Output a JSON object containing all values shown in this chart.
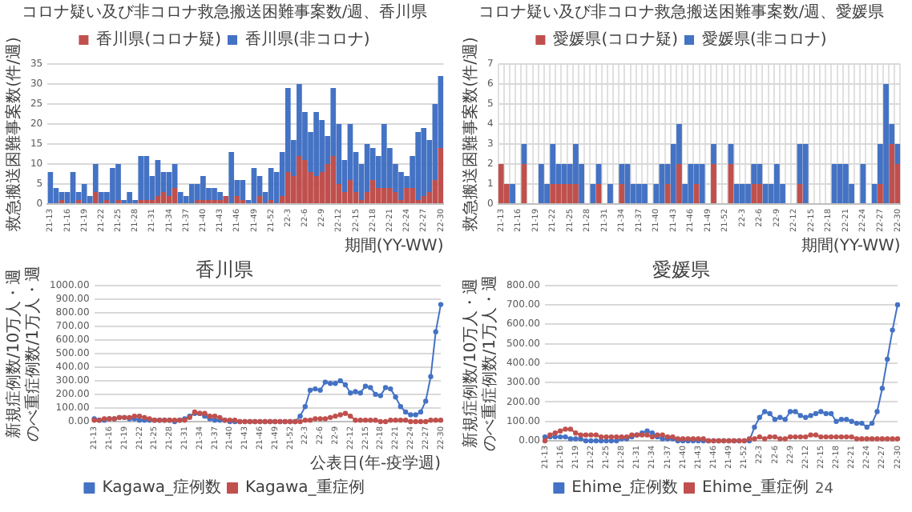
{
  "chart_data": [
    {
      "type": "bar",
      "title": "コロナ疑い及び非コロナ救急搬送困難事案数/週、香川県",
      "xlabel": "期間(YY-WW)",
      "ylabel": "救急搬送困難事案数(件/週)",
      "stacked": true,
      "grid": "y",
      "legend": "top left",
      "ylim": [
        0,
        35
      ],
      "yticks": [
        0,
        5,
        10,
        15,
        20,
        25,
        30,
        35
      ],
      "categories": [
        "21-13",
        null,
        null,
        "21-16",
        null,
        null,
        "21-19",
        null,
        null,
        "21-22",
        null,
        null,
        "21-25",
        null,
        null,
        "21-28",
        null,
        null,
        "21-31",
        null,
        null,
        "21-34",
        null,
        null,
        "21-37",
        null,
        null,
        "21-40",
        null,
        null,
        "21-43",
        null,
        null,
        "21-46",
        null,
        null,
        "21-49",
        null,
        null,
        "21-52",
        null,
        null,
        "22-3",
        null,
        null,
        "22-6",
        null,
        null,
        "22-9",
        null,
        null,
        "22-12",
        null,
        null,
        "22-15",
        null,
        null,
        "22-18",
        null,
        null,
        "22-21",
        null,
        null,
        "22-24",
        null,
        null,
        "22-27",
        null,
        null,
        "22-30"
      ],
      "series": [
        {
          "name": "香川県(コロナ疑)",
          "color": "#c0504d",
          "values": [
            0,
            0,
            1,
            0,
            0,
            1,
            0,
            0,
            3,
            0,
            1,
            0,
            1,
            0,
            0,
            0,
            1,
            1,
            1,
            2,
            3,
            2,
            4,
            0,
            0,
            0,
            1,
            1,
            1,
            1,
            1,
            2,
            0,
            2,
            1,
            0,
            0,
            2,
            0,
            1,
            0,
            2,
            8,
            7,
            12,
            11,
            8,
            7,
            8,
            10,
            12,
            5,
            3,
            6,
            3,
            1,
            3,
            6,
            4,
            4,
            4,
            3,
            1,
            4,
            4,
            1,
            2,
            3,
            6,
            14
          ]
        },
        {
          "name": "香川県(非コロナ)",
          "color": "#4472c4",
          "values": [
            8,
            4,
            2,
            3,
            8,
            2,
            5,
            2,
            7,
            3,
            2,
            9,
            9,
            1,
            3,
            1,
            11,
            11,
            6,
            9,
            5,
            6,
            6,
            3,
            2,
            5,
            4,
            6,
            3,
            3,
            2,
            0,
            13,
            4,
            5,
            1,
            9,
            5,
            3,
            8,
            8,
            11,
            21,
            9,
            18,
            12,
            10,
            16,
            13,
            7,
            17,
            15,
            8,
            14,
            10,
            9,
            12,
            8,
            8,
            16,
            10,
            7,
            7,
            3,
            8,
            17,
            17,
            13,
            19,
            18
          ]
        }
      ]
    },
    {
      "type": "bar",
      "title": "コロナ疑い及び非コロナ救急搬送困難事案数/週、愛媛県",
      "xlabel": "期間(YY-WW)",
      "ylabel": "救急搬送困難事案数(件/週)",
      "stacked": true,
      "grid": true,
      "legend": "top left",
      "ylim": [
        0,
        7
      ],
      "yticks": [
        0,
        1,
        2,
        3,
        4,
        5,
        6,
        7
      ],
      "categories": [
        "21-13",
        null,
        null,
        "21-16",
        null,
        null,
        "21-19",
        null,
        null,
        "21-22",
        null,
        null,
        "21-25",
        null,
        null,
        "21-28",
        null,
        null,
        "21-31",
        null,
        null,
        "21-34",
        null,
        null,
        "21-37",
        null,
        null,
        "21-40",
        null,
        null,
        "21-43",
        null,
        null,
        "21-46",
        null,
        null,
        "21-49",
        null,
        null,
        "21-52",
        null,
        null,
        "22-3",
        null,
        null,
        "22-6",
        null,
        null,
        "22-9",
        null,
        null,
        "22-12",
        null,
        null,
        "22-15",
        null,
        null,
        "22-18",
        null,
        null,
        "22-21",
        null,
        null,
        "22-24",
        null,
        null,
        "22-27",
        null,
        null,
        "22-30"
      ],
      "series": [
        {
          "name": "愛媛県(コロナ疑)",
          "color": "#c0504d",
          "values": [
            2,
            1,
            0,
            0,
            2,
            0,
            0,
            0,
            0,
            1,
            1,
            1,
            1,
            1,
            0,
            0,
            0,
            1,
            0,
            0,
            0,
            1,
            0,
            0,
            0,
            0,
            0,
            0,
            0,
            1,
            0,
            2,
            0,
            0,
            1,
            0,
            0,
            2,
            0,
            0,
            2,
            0,
            0,
            0,
            1,
            1,
            0,
            0,
            0,
            0,
            0,
            0,
            1,
            0,
            0,
            0,
            0,
            0,
            0,
            0,
            0,
            0,
            0,
            0,
            0,
            0,
            1,
            0,
            3,
            2
          ]
        },
        {
          "name": "愛媛県(非コロナ)",
          "color": "#4472c4",
          "values": [
            0,
            0,
            1,
            0,
            1,
            0,
            0,
            2,
            1,
            2,
            1,
            1,
            1,
            2,
            2,
            0,
            1,
            1,
            0,
            1,
            0,
            1,
            2,
            1,
            1,
            1,
            0,
            1,
            2,
            1,
            3,
            2,
            1,
            2,
            1,
            2,
            0,
            1,
            0,
            0,
            1,
            1,
            1,
            1,
            1,
            1,
            1,
            1,
            2,
            1,
            0,
            0,
            2,
            3,
            0,
            0,
            0,
            0,
            2,
            2,
            2,
            1,
            0,
            2,
            0,
            1,
            2,
            6,
            1,
            1
          ]
        }
      ]
    },
    {
      "type": "line",
      "title": "香川県",
      "xlabel": "公表日(年-疫学週)",
      "ylabel": "新規症例数/10万人・週のべ重症例数/1万人・週",
      "grid": "y",
      "legend": "bottom",
      "marker": "circle",
      "ylim": [
        0,
        1000
      ],
      "yticks": [
        {
          "value": 0,
          "label": "0.00"
        },
        {
          "value": 100,
          "label": "100.00"
        },
        {
          "value": 200,
          "label": "200.00"
        },
        {
          "value": 300,
          "label": "300.00"
        },
        {
          "value": 400,
          "label": "400.00"
        },
        {
          "value": 500,
          "label": "500.00"
        },
        {
          "value": 600,
          "label": "600.00"
        },
        {
          "value": 700,
          "label": "700.00"
        },
        {
          "value": 800,
          "label": "800.00"
        },
        {
          "value": 900,
          "label": "900.00"
        },
        {
          "value": 1000,
          "label": "1000.00"
        }
      ],
      "categories": [
        "21-13",
        null,
        null,
        "21-16",
        null,
        null,
        "21-19",
        null,
        null,
        "21-22",
        null,
        null,
        "21-25",
        null,
        null,
        "21-28",
        null,
        null,
        "21-31",
        null,
        null,
        "21-34",
        null,
        null,
        "21-37",
        null,
        null,
        "21-40",
        null,
        null,
        "21-43",
        null,
        null,
        "21-46",
        null,
        null,
        "21-49",
        null,
        null,
        "21-52",
        null,
        null,
        "22-3",
        null,
        null,
        "22-6",
        null,
        null,
        "22-9",
        null,
        null,
        "22-12",
        null,
        null,
        "22-15",
        null,
        null,
        "22-18",
        null,
        null,
        "22-21",
        null,
        null,
        "22-24",
        null,
        null,
        "22-27",
        null,
        null,
        "22-30"
      ],
      "series": [
        {
          "name": "Kagawa_症例数",
          "color": "#4472c4",
          "values": [
            20,
            10,
            10,
            20,
            20,
            30,
            30,
            20,
            20,
            10,
            10,
            10,
            10,
            10,
            10,
            10,
            0,
            10,
            20,
            40,
            60,
            60,
            40,
            20,
            10,
            10,
            10,
            0,
            0,
            0,
            0,
            0,
            0,
            0,
            0,
            0,
            0,
            0,
            0,
            0,
            0,
            40,
            110,
            230,
            240,
            230,
            290,
            280,
            280,
            300,
            270,
            210,
            220,
            210,
            260,
            250,
            200,
            190,
            250,
            240,
            180,
            110,
            70,
            50,
            50,
            70,
            150,
            330,
            660,
            860
          ]
        },
        {
          "name": "Kagawa_重症例",
          "color": "#c0504d",
          "values": [
            10,
            10,
            20,
            20,
            20,
            30,
            30,
            30,
            40,
            40,
            30,
            20,
            10,
            10,
            10,
            10,
            10,
            10,
            10,
            30,
            70,
            60,
            60,
            40,
            40,
            30,
            10,
            10,
            10,
            0,
            0,
            0,
            0,
            0,
            0,
            0,
            0,
            0,
            0,
            0,
            0,
            0,
            10,
            10,
            20,
            20,
            20,
            30,
            40,
            50,
            60,
            40,
            10,
            10,
            10,
            10,
            10,
            0,
            0,
            10,
            10,
            10,
            10,
            0,
            0,
            0,
            0,
            10,
            10,
            10
          ]
        }
      ]
    },
    {
      "type": "line",
      "title": "愛媛県",
      "ylabel": "新規症例数/10万人・週のべ重症例数/1万人・週",
      "grid": "y",
      "legend": "bottom",
      "marker": "circle",
      "ylim": [
        0,
        800
      ],
      "annotations": [
        "24"
      ],
      "yticks": [
        {
          "value": 0,
          "label": "0.00"
        },
        {
          "value": 100,
          "label": "100.00"
        },
        {
          "value": 200,
          "label": "200.00"
        },
        {
          "value": 300,
          "label": "300.00"
        },
        {
          "value": 400,
          "label": "400.00"
        },
        {
          "value": 500,
          "label": "500.00"
        },
        {
          "value": 600,
          "label": "600.00"
        },
        {
          "value": 700,
          "label": "700.00"
        },
        {
          "value": 800,
          "label": "800.00"
        }
      ],
      "categories": [
        "21-13",
        null,
        null,
        "21-16",
        null,
        null,
        "21-19",
        null,
        null,
        "21-22",
        null,
        null,
        "21-25",
        null,
        null,
        "21-28",
        null,
        null,
        "21-31",
        null,
        null,
        "21-34",
        null,
        null,
        "21-37",
        null,
        null,
        "21-40",
        null,
        null,
        "21-43",
        null,
        null,
        "21-46",
        null,
        null,
        "21-49",
        null,
        null,
        "21-52",
        null,
        null,
        "22-3",
        null,
        null,
        "22-6",
        null,
        null,
        "22-9",
        null,
        null,
        "22-12",
        null,
        null,
        "22-15",
        null,
        null,
        "22-18",
        null,
        null,
        "22-21",
        null,
        null,
        "22-24",
        null,
        null,
        "22-27",
        null,
        null,
        "22-30"
      ],
      "series": [
        {
          "name": "Ehime_症例数",
          "color": "#4472c4",
          "values": [
            20,
            20,
            20,
            20,
            20,
            10,
            10,
            10,
            0,
            0,
            0,
            0,
            0,
            0,
            0,
            10,
            10,
            20,
            30,
            40,
            50,
            40,
            20,
            10,
            10,
            10,
            0,
            0,
            0,
            0,
            0,
            0,
            0,
            0,
            0,
            0,
            0,
            0,
            0,
            0,
            0,
            70,
            120,
            150,
            140,
            110,
            120,
            110,
            150,
            150,
            130,
            120,
            130,
            140,
            150,
            140,
            140,
            100,
            110,
            110,
            100,
            90,
            90,
            70,
            90,
            150,
            270,
            420,
            570,
            700
          ]
        },
        {
          "name": "Ehime_重症例",
          "color": "#c0504d",
          "values": [
            0,
            30,
            40,
            50,
            60,
            60,
            40,
            30,
            30,
            30,
            30,
            20,
            20,
            20,
            20,
            20,
            20,
            30,
            30,
            30,
            30,
            20,
            30,
            30,
            20,
            20,
            10,
            10,
            10,
            10,
            10,
            10,
            0,
            0,
            0,
            0,
            0,
            0,
            0,
            0,
            10,
            10,
            20,
            10,
            20,
            20,
            10,
            10,
            20,
            20,
            20,
            20,
            30,
            30,
            20,
            20,
            20,
            20,
            20,
            20,
            20,
            10,
            10,
            10,
            10,
            10,
            10,
            10,
            10,
            10
          ]
        }
      ]
    }
  ]
}
